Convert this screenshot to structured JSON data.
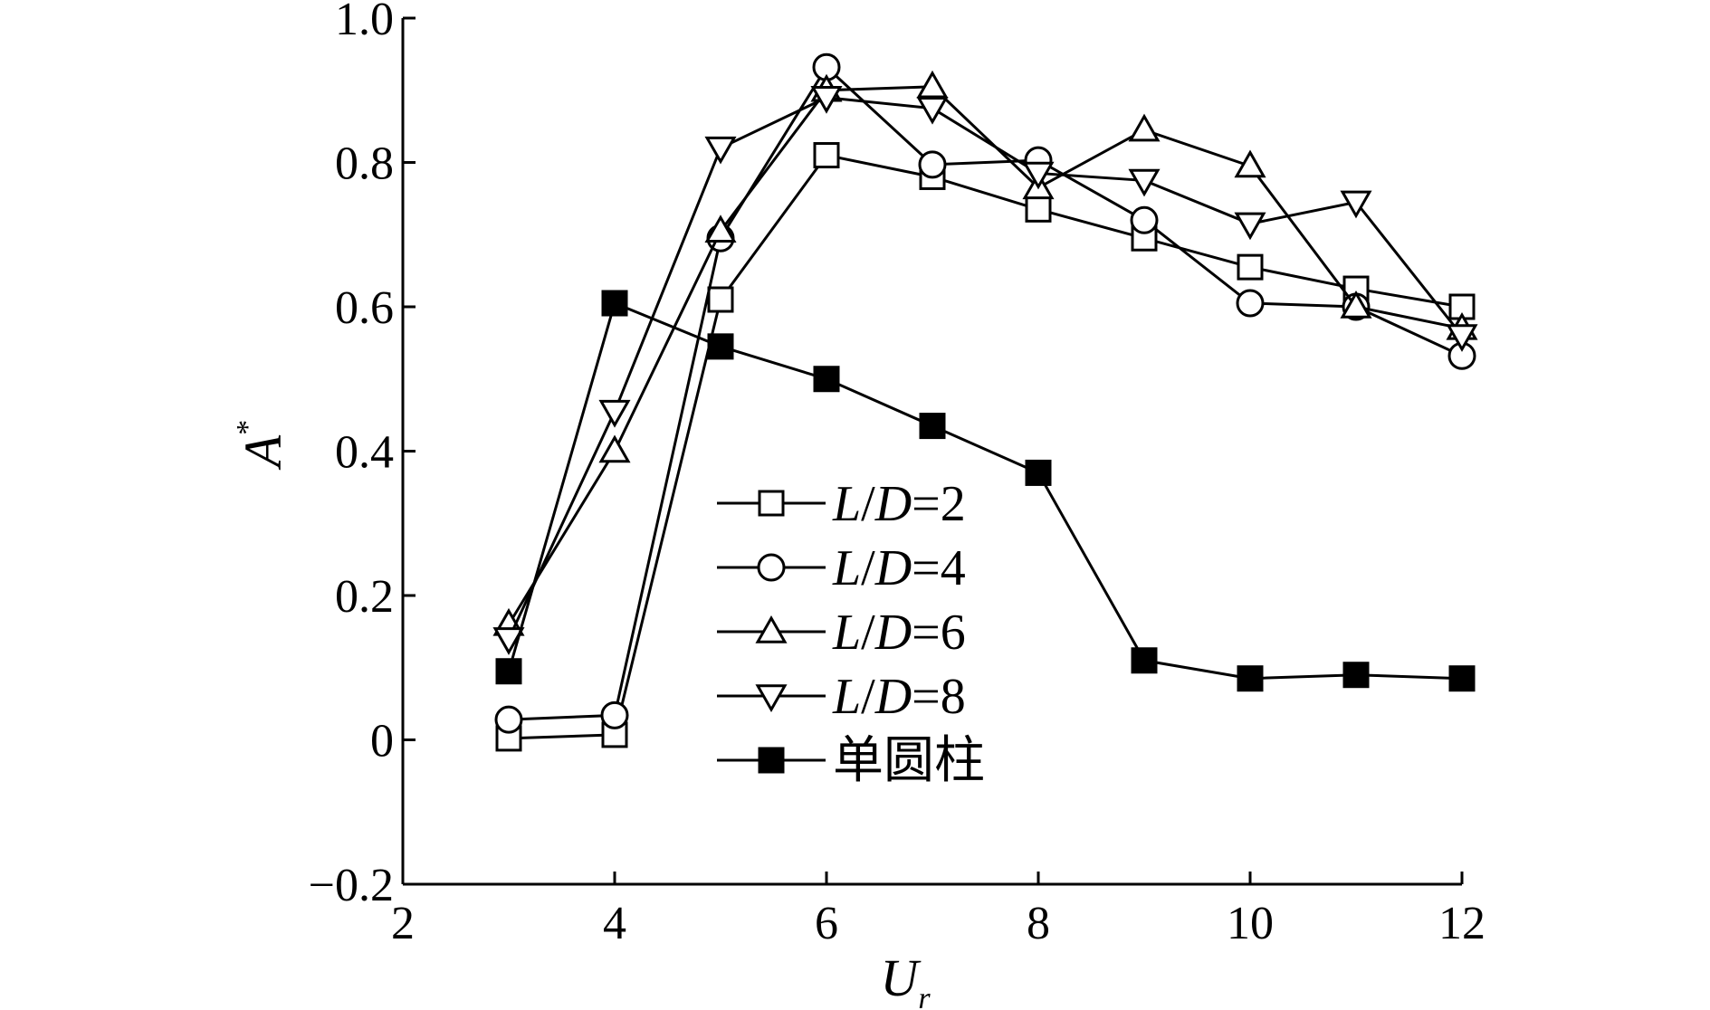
{
  "chart_data": {
    "type": "line",
    "title": "",
    "xlabel": "U",
    "xlabel_sub": "r",
    "ylabel": "A",
    "ylabel_sup": "*",
    "xlim": [
      2,
      12
    ],
    "ylim": [
      -0.2,
      1.0
    ],
    "xticks": [
      2,
      4,
      6,
      8,
      10,
      12
    ],
    "yticks": [
      -0.2,
      0,
      0.2,
      0.4,
      0.6,
      0.8,
      1.0
    ],
    "xtick_labels": [
      "2",
      "4",
      "6",
      "8",
      "10",
      "12"
    ],
    "ytick_labels": [
      "−0.2",
      "0",
      "0.2",
      "0.4",
      "0.6",
      "0.8",
      "1.0"
    ],
    "grid": false,
    "legend_position": "center",
    "x": [
      3,
      4,
      5,
      6,
      7,
      8,
      9,
      10,
      11,
      12
    ],
    "series": [
      {
        "name": "L/D=2",
        "label_var1": "L",
        "label_sep": "/",
        "label_var2": "D",
        "label_rest": "=2",
        "marker": "square-open",
        "values": [
          0.002,
          0.007,
          0.61,
          0.81,
          0.78,
          0.735,
          0.695,
          0.655,
          0.625,
          0.6
        ]
      },
      {
        "name": "L/D=4",
        "label_var1": "L",
        "label_sep": "/",
        "label_var2": "D",
        "label_rest": "=4",
        "marker": "circle-open",
        "values": [
          0.028,
          0.034,
          0.695,
          0.932,
          0.797,
          0.803,
          0.72,
          0.605,
          0.6,
          0.532
        ]
      },
      {
        "name": "L/D=6",
        "label_var1": "L",
        "label_sep": "/",
        "label_var2": "D",
        "label_rest": "=6",
        "marker": "triangle-up-open",
        "values": [
          0.16,
          0.4,
          0.705,
          0.9,
          0.905,
          0.765,
          0.845,
          0.795,
          0.6,
          0.57
        ]
      },
      {
        "name": "L/D=8",
        "label_var1": "L",
        "label_sep": "/",
        "label_var2": "D",
        "label_rest": "=8",
        "marker": "triangle-down-open",
        "values": [
          0.14,
          0.455,
          0.82,
          0.89,
          0.875,
          0.785,
          0.775,
          0.715,
          0.745,
          0.56
        ]
      },
      {
        "name": "单圆柱",
        "label_var1": "",
        "label_sep": "",
        "label_var2": "",
        "label_rest": "单圆柱",
        "marker": "square-filled",
        "values": [
          0.095,
          0.605,
          0.545,
          0.5,
          0.435,
          0.37,
          0.11,
          0.085,
          0.09,
          0.085
        ]
      }
    ]
  }
}
